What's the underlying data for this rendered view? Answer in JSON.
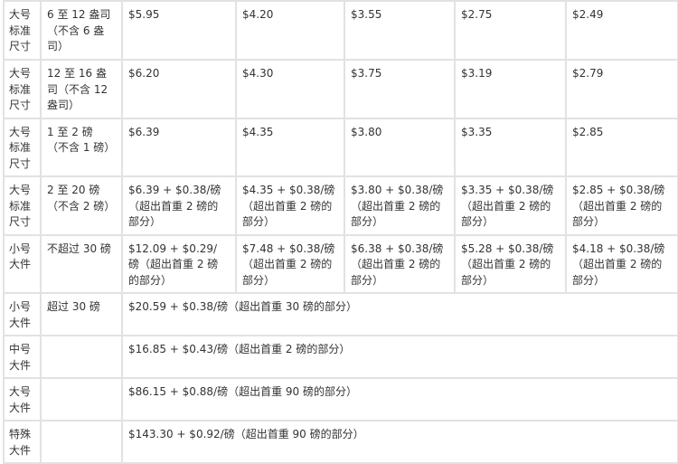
{
  "rows": [
    {
      "category": "大号标准尺寸",
      "weight": "6 至 12 盎司（不含 6 盎司）",
      "prices": [
        "$5.95",
        "$4.20",
        "$3.55",
        "$2.75",
        "$2.49"
      ]
    },
    {
      "category": "大号标准尺寸",
      "weight": "12 至 16 盎司（不含 12 盎司）",
      "prices": [
        "$6.20",
        "$4.30",
        "$3.75",
        "$3.19",
        "$2.79"
      ]
    },
    {
      "category": "大号标准尺寸",
      "weight": "1 至 2 磅（不含 1 磅）",
      "prices": [
        "$6.39",
        "$4.35",
        "$3.80",
        "$3.35",
        "$2.85"
      ]
    },
    {
      "category": "大号标准尺寸",
      "weight": "2 至 20 磅（不含 2 磅）",
      "prices": [
        "$6.39 + $0.38/磅（超出首重 2 磅的部分）",
        "$4.35 + $0.38/磅（超出首重 2 磅的部分）",
        "$3.80 + $0.38/磅（超出首重 2 磅的部分）",
        "$3.35 + $0.38/磅（超出首重 2 磅的部分）",
        "$2.85 + $0.38/磅（超出首重 2 磅的部分）"
      ]
    },
    {
      "category": "小号大件",
      "weight": "不超过 30 磅",
      "prices": [
        "$12.09 + $0.29/磅（超出首重 2 磅的部分）",
        "$7.48 + $0.38/磅（超出首重 2 磅的部分）",
        "$6.38 + $0.38/磅（超出首重 2 磅的部分）",
        "$5.28 + $0.38/磅（超出首重 2 磅的部分）",
        "$4.18 + $0.38/磅（超出首重 2 磅的部分）"
      ]
    }
  ],
  "merged_rows": [
    {
      "category": "小号大件",
      "weight": "超过 30 磅",
      "price": "$20.59 + $0.38/磅（超出首重 30 磅的部分）"
    },
    {
      "category": "中号大件",
      "weight": "",
      "price": "$16.85 + $0.43/磅（超出首重 2 磅的部分）"
    },
    {
      "category": "大号大件",
      "weight": "",
      "price": "$86.15 + $0.88/磅（超出首重 90 磅的部分）"
    },
    {
      "category": "特殊大件",
      "weight": "",
      "price": "$143.30 + $0.92/磅（超出首重 90 磅的部分）"
    }
  ]
}
